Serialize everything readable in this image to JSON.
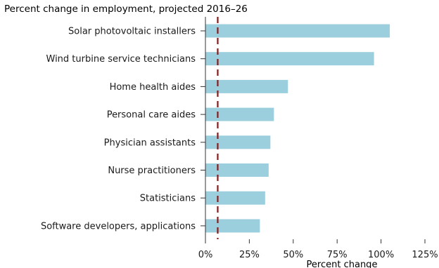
{
  "chart_data": {
    "type": "bar",
    "orientation": "horizontal",
    "title": "Percent change in employment, projected 2016–26",
    "xlabel": "Percent change",
    "ylabel": "",
    "categories": [
      "Solar photovoltaic installers",
      "Wind turbine service technicians",
      "Home health aides",
      "Personal care aides",
      "Physician assistants",
      "Nurse practitioners",
      "Statisticians",
      "Software developers, applications"
    ],
    "values": [
      105,
      96,
      47,
      39,
      37,
      36,
      34,
      31
    ],
    "xlim": [
      0,
      125
    ],
    "xticks": [
      0,
      25,
      50,
      75,
      100,
      125
    ],
    "xtick_labels": [
      "0%",
      "25%",
      "50%",
      "75%",
      "100%",
      "125%"
    ],
    "reference_line": {
      "value": 7,
      "style": "dashed"
    },
    "grid": false,
    "colors": {
      "bar": "#9ccfdd",
      "reference_line": "#8b1a1a",
      "axis": "#333333"
    }
  }
}
